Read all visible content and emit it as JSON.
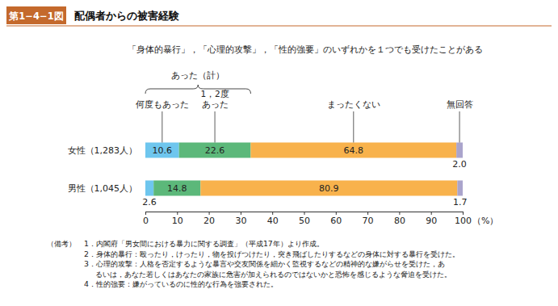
{
  "chart_data": {
    "type": "bar",
    "orientation": "horizontal",
    "stacked": true,
    "data_labels": true,
    "grid": false,
    "figure_number": "第1−4−1図",
    "title": "配偶者からの被害経験",
    "subtitle": "「身体的暴行」，「心理的攻撃」，「性的強要」のいずれかを１つでも受けたことがある",
    "annotation": "あった（計）",
    "categories": [
      "女性（1,283人）",
      "男性（1,045人）"
    ],
    "series": [
      {
        "name": "何度もあった",
        "color": "#6ec6ee",
        "values": [
          10.6,
          2.6
        ]
      },
      {
        "name": "1，2度\nあった",
        "color": "#5cb87a",
        "values": [
          22.6,
          14.8
        ]
      },
      {
        "name": "まったくない",
        "color": "#f8b24c",
        "values": [
          64.8,
          80.9
        ]
      },
      {
        "name": "無回答",
        "color": "#aaa4cc",
        "values": [
          2.0,
          1.7
        ],
        "value_labels": [
          "2.0",
          "1.7"
        ]
      }
    ],
    "xlim": [
      0,
      100
    ],
    "xticks": [
      0,
      10,
      20,
      30,
      40,
      50,
      60,
      70,
      80,
      90,
      100
    ],
    "x_label": "（%）",
    "notes_label": "（備考）",
    "notes": [
      "1．内閣府「男女間における暴力に関する調査」（平成17年）より作成。",
      "2．身体的暴行：殴ったり，けったり，物を投げつけたり，突き飛ばしたりするなどの身体に対する暴行を受けた。",
      "3．心理的攻撃：人格を否定するような暴言や交友関係を細かく監視するなどの精神的な嫌がらせを受けた，あ\nるいは，あなた若しくはあなたの家族に危害が加えられるのではないかと恐怖を感じるような脅迫を受けた。",
      "4．性的強要：嫌がっているのに性的な行為を強要された。"
    ]
  }
}
